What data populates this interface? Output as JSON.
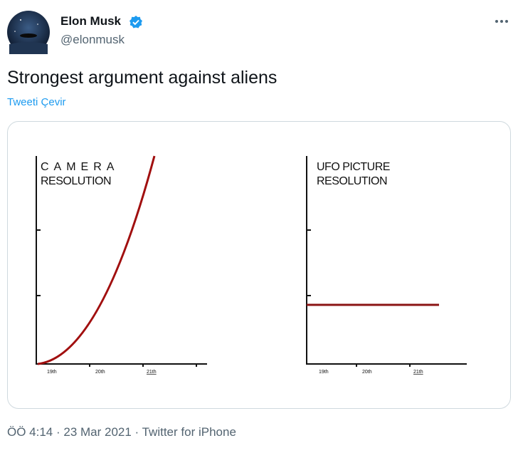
{
  "tweet": {
    "author_name": "Elon Musk",
    "author_handle": "@elonmusk",
    "text": "Strongest argument against aliens",
    "translate_link": "Tweeti Çevir",
    "meta": "ÖÖ 4:14 · 23 Mar 2021 · Twitter for iPhone"
  },
  "image": {
    "panels": [
      {
        "title_line1": "CAMERA",
        "title_line2": "RESOLUTION",
        "x_labels": [
          "19th",
          "20th",
          "21th"
        ]
      },
      {
        "title_line1": "UFO PICTURE",
        "title_line2": "RESOLUTION",
        "x_labels": [
          "19th",
          "20th",
          "21th"
        ]
      }
    ]
  }
}
